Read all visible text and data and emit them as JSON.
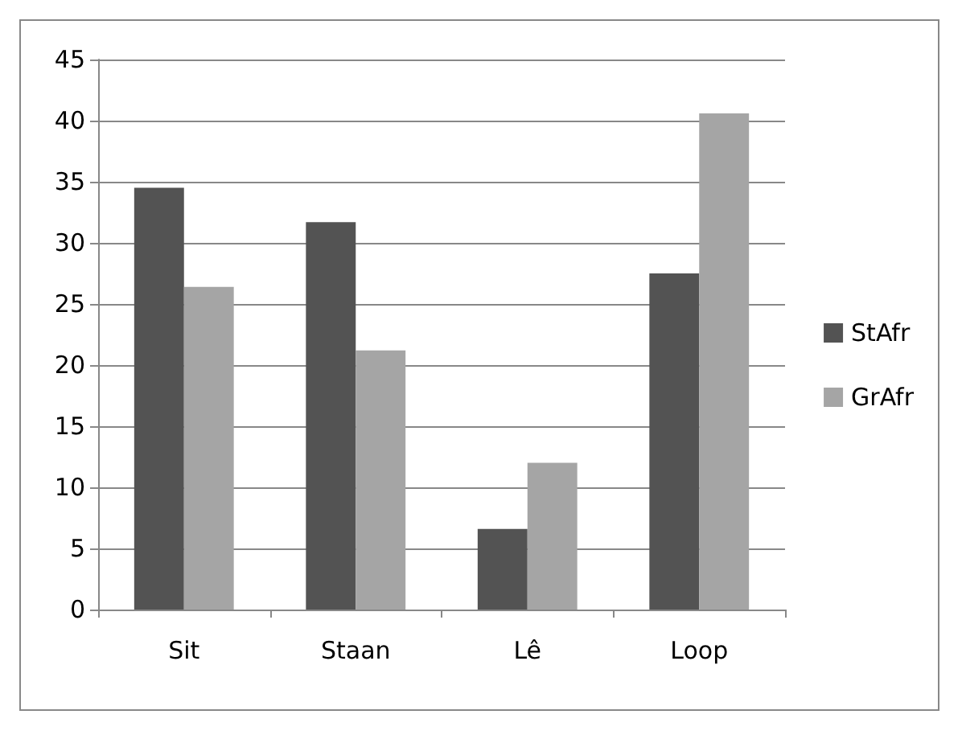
{
  "chart_data": {
    "type": "bar",
    "categories": [
      "Sit",
      "Staan",
      "Lê",
      "Loop"
    ],
    "series": [
      {
        "name": "StAfr",
        "color": "#535353",
        "values": [
          34.5,
          31.7,
          6.6,
          27.5
        ]
      },
      {
        "name": "GrAfr",
        "color": "#a5a5a5",
        "values": [
          26.4,
          21.2,
          12.0,
          40.6
        ]
      }
    ],
    "ylim": [
      0,
      45
    ],
    "yticks": [
      0,
      5,
      10,
      15,
      20,
      25,
      30,
      35,
      40,
      45
    ],
    "grid": "y",
    "legend": "right"
  }
}
